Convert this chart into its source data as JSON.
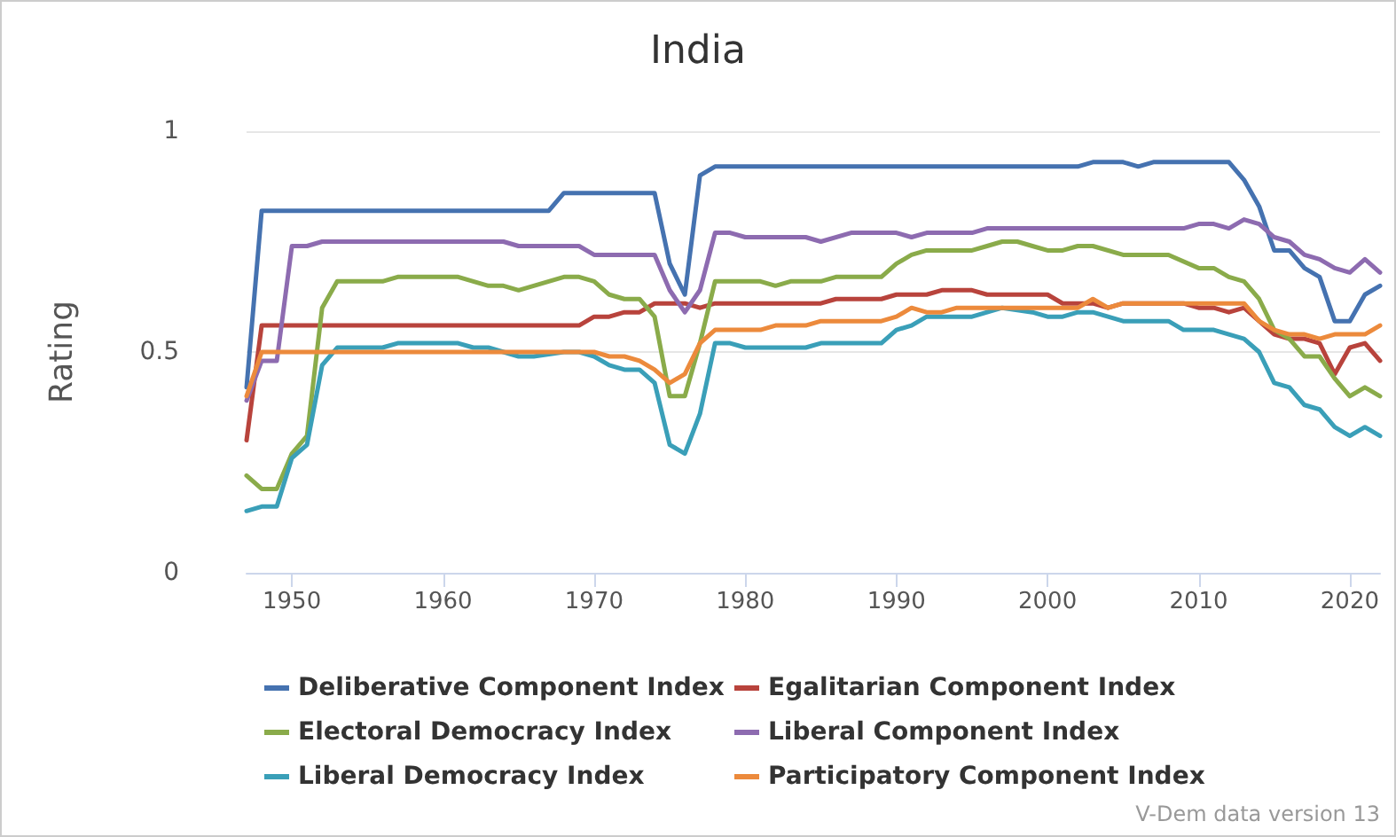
{
  "chart_data": {
    "type": "line",
    "title": "India",
    "ylabel": "Rating",
    "xlim": [
      1947,
      2022
    ],
    "xticks": [
      1950,
      1960,
      1970,
      1980,
      1990,
      2000,
      2010,
      2020
    ],
    "ylim": [
      0,
      1
    ],
    "yticks": [
      0,
      0.5,
      1
    ],
    "grid": "y",
    "legend": "bottom",
    "marker": "none",
    "line_style": "solid",
    "annotations": [
      "V-Dem data version 13"
    ],
    "series": [
      {
        "name": "Deliberative Component Index",
        "color": "#4572b0",
        "x": [
          1947,
          1948,
          1967,
          1968,
          1974,
          1975,
          1976,
          1977,
          1978,
          2002,
          2003,
          2005,
          2006,
          2007,
          2012,
          2013,
          2014,
          2015,
          2016,
          2017,
          2018,
          2019,
          2020,
          2021,
          2022
        ],
        "values": [
          0.42,
          0.82,
          0.82,
          0.86,
          0.86,
          0.7,
          0.63,
          0.9,
          0.92,
          0.92,
          0.93,
          0.93,
          0.92,
          0.93,
          0.93,
          0.89,
          0.83,
          0.73,
          0.73,
          0.69,
          0.67,
          0.57,
          0.57,
          0.63,
          0.65
        ]
      },
      {
        "name": "Egalitarian Component Index",
        "color": "#b8433c",
        "x": [
          1947,
          1948,
          1969,
          1970,
          1971,
          1972,
          1973,
          1974,
          1976,
          1977,
          1978,
          1985,
          1986,
          1989,
          1990,
          1992,
          1993,
          1995,
          1996,
          2000,
          2001,
          2003,
          2004,
          2005,
          2009,
          2010,
          2011,
          2012,
          2013,
          2014,
          2015,
          2016,
          2017,
          2018,
          2019,
          2020,
          2021,
          2022
        ],
        "values": [
          0.3,
          0.56,
          0.56,
          0.58,
          0.58,
          0.59,
          0.59,
          0.61,
          0.61,
          0.6,
          0.61,
          0.61,
          0.62,
          0.62,
          0.63,
          0.63,
          0.64,
          0.64,
          0.63,
          0.63,
          0.61,
          0.61,
          0.6,
          0.61,
          0.61,
          0.6,
          0.6,
          0.59,
          0.6,
          0.57,
          0.54,
          0.53,
          0.53,
          0.52,
          0.45,
          0.51,
          0.52,
          0.48
        ]
      },
      {
        "name": "Electoral Democracy Index",
        "color": "#8aab4a",
        "x": [
          1947,
          1948,
          1949,
          1950,
          1951,
          1952,
          1953,
          1956,
          1957,
          1961,
          1963,
          1964,
          1965,
          1968,
          1969,
          1970,
          1971,
          1972,
          1973,
          1974,
          1975,
          1976,
          1977,
          1978,
          1981,
          1982,
          1983,
          1985,
          1986,
          1989,
          1990,
          1991,
          1992,
          1995,
          1996,
          1997,
          1998,
          1999,
          2000,
          2001,
          2002,
          2003,
          2005,
          2008,
          2010,
          2011,
          2012,
          2013,
          2014,
          2015,
          2016,
          2017,
          2018,
          2019,
          2020,
          2021,
          2022
        ],
        "values": [
          0.22,
          0.19,
          0.19,
          0.27,
          0.31,
          0.6,
          0.66,
          0.66,
          0.67,
          0.67,
          0.65,
          0.65,
          0.64,
          0.67,
          0.67,
          0.66,
          0.63,
          0.62,
          0.62,
          0.58,
          0.4,
          0.4,
          0.52,
          0.66,
          0.66,
          0.65,
          0.66,
          0.66,
          0.67,
          0.67,
          0.7,
          0.72,
          0.73,
          0.73,
          0.74,
          0.75,
          0.75,
          0.74,
          0.73,
          0.73,
          0.74,
          0.74,
          0.72,
          0.72,
          0.69,
          0.69,
          0.67,
          0.66,
          0.62,
          0.55,
          0.53,
          0.49,
          0.49,
          0.44,
          0.4,
          0.42,
          0.4
        ]
      },
      {
        "name": "Liberal Component Index",
        "color": "#8d6bb0",
        "x": [
          1947,
          1948,
          1949,
          1950,
          1951,
          1952,
          1964,
          1965,
          1969,
          1970,
          1974,
          1975,
          1976,
          1977,
          1978,
          1979,
          1980,
          1984,
          1985,
          1987,
          1990,
          1991,
          1992,
          1995,
          1996,
          2009,
          2010,
          2011,
          2012,
          2013,
          2014,
          2015,
          2016,
          2017,
          2018,
          2019,
          2020,
          2021,
          2022
        ],
        "values": [
          0.39,
          0.48,
          0.48,
          0.74,
          0.74,
          0.75,
          0.75,
          0.74,
          0.74,
          0.72,
          0.72,
          0.64,
          0.59,
          0.64,
          0.77,
          0.77,
          0.76,
          0.76,
          0.75,
          0.77,
          0.77,
          0.76,
          0.77,
          0.77,
          0.78,
          0.78,
          0.79,
          0.79,
          0.78,
          0.8,
          0.79,
          0.76,
          0.75,
          0.72,
          0.71,
          0.69,
          0.68,
          0.71,
          0.68
        ]
      },
      {
        "name": "Liberal Democracy Index",
        "color": "#3a9fb8",
        "x": [
          1947,
          1948,
          1949,
          1950,
          1951,
          1952,
          1953,
          1956,
          1957,
          1961,
          1962,
          1963,
          1965,
          1966,
          1968,
          1969,
          1970,
          1971,
          1972,
          1973,
          1974,
          1975,
          1976,
          1977,
          1978,
          1979,
          1980,
          1984,
          1985,
          1989,
          1990,
          1991,
          1992,
          1995,
          1997,
          1999,
          2000,
          2001,
          2002,
          2003,
          2005,
          2008,
          2009,
          2011,
          2012,
          2013,
          2014,
          2015,
          2016,
          2017,
          2018,
          2019,
          2020,
          2021,
          2022
        ],
        "values": [
          0.14,
          0.15,
          0.15,
          0.26,
          0.29,
          0.47,
          0.51,
          0.51,
          0.52,
          0.52,
          0.51,
          0.51,
          0.49,
          0.49,
          0.5,
          0.5,
          0.49,
          0.47,
          0.46,
          0.46,
          0.43,
          0.29,
          0.27,
          0.36,
          0.52,
          0.52,
          0.51,
          0.51,
          0.52,
          0.52,
          0.55,
          0.56,
          0.58,
          0.58,
          0.6,
          0.59,
          0.58,
          0.58,
          0.59,
          0.59,
          0.57,
          0.57,
          0.55,
          0.55,
          0.54,
          0.53,
          0.5,
          0.43,
          0.42,
          0.38,
          0.37,
          0.33,
          0.31,
          0.33,
          0.31
        ]
      },
      {
        "name": "Participatory Component Index",
        "color": "#ec8a3c",
        "x": [
          1947,
          1948,
          1969,
          1970,
          1971,
          1972,
          1973,
          1974,
          1975,
          1976,
          1977,
          1978,
          1981,
          1982,
          1984,
          1985,
          1989,
          1990,
          1991,
          1992,
          1993,
          1994,
          2002,
          2003,
          2004,
          2005,
          2013,
          2014,
          2015,
          2016,
          2017,
          2018,
          2019,
          2020,
          2021,
          2022
        ],
        "values": [
          0.4,
          0.5,
          0.5,
          0.5,
          0.49,
          0.49,
          0.48,
          0.46,
          0.43,
          0.45,
          0.52,
          0.55,
          0.55,
          0.56,
          0.56,
          0.57,
          0.57,
          0.58,
          0.6,
          0.59,
          0.59,
          0.6,
          0.6,
          0.62,
          0.6,
          0.61,
          0.61,
          0.57,
          0.55,
          0.54,
          0.54,
          0.53,
          0.54,
          0.54,
          0.54,
          0.56
        ]
      }
    ]
  }
}
